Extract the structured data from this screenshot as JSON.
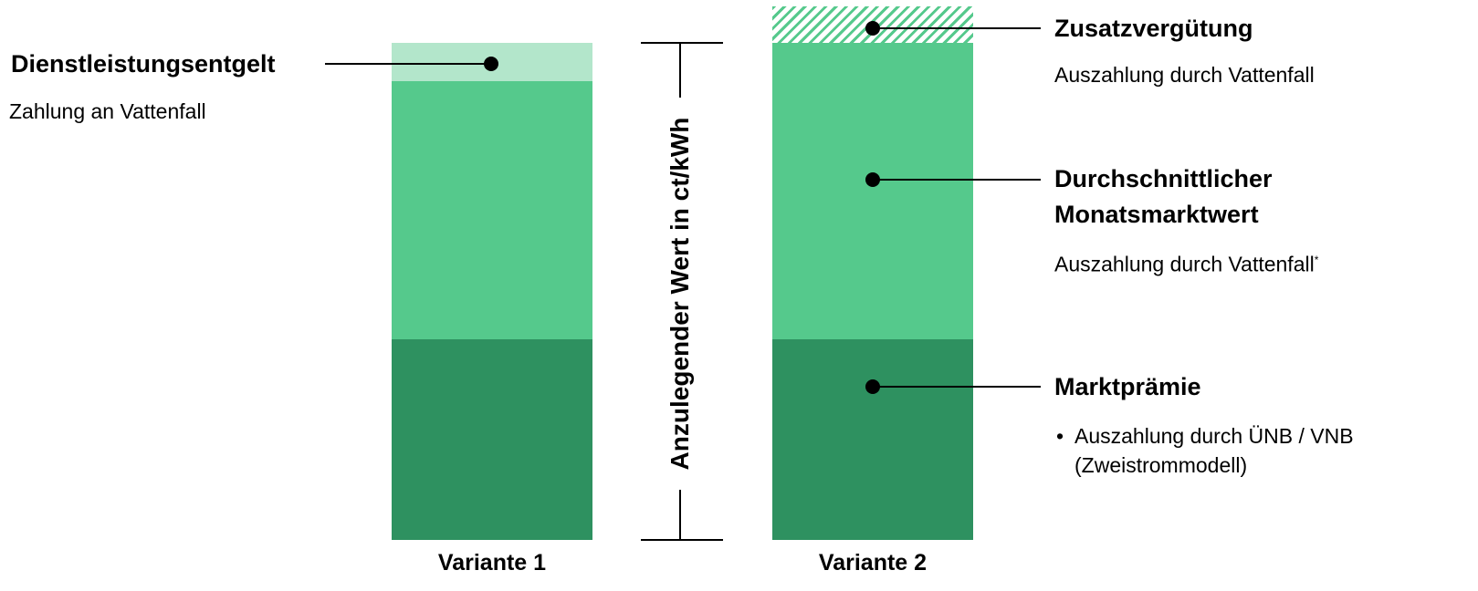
{
  "axis": {
    "title": "Anzulegender Wert in ct/kWh"
  },
  "bars": [
    {
      "label": "Variante 1"
    },
    {
      "label": "Variante 2"
    }
  ],
  "annotations": {
    "dienstleistung": {
      "title": "Dienstleistungsentgelt",
      "text": "Zahlung an Vattenfall"
    },
    "zusatz": {
      "title": "Zusatzvergütung",
      "text": "Auszahlung durch Vattenfall"
    },
    "monatsmarktwert": {
      "title_line1": "Durchschnittlicher",
      "title_line2": "Monatsmarktwert",
      "text": "Auszahlung durch Vattenfall",
      "footnote_mark": "*"
    },
    "marktpraemie": {
      "title": "Marktprämie",
      "bullet": "•",
      "line1": "Auszahlung durch ÜNB / VNB",
      "line2": "(Zweistrommodell)"
    }
  },
  "colors": {
    "light_green": "#b3e6cb",
    "mid_green": "#55c98c",
    "dark_green": "#2e9160",
    "marker": "#000000"
  }
}
